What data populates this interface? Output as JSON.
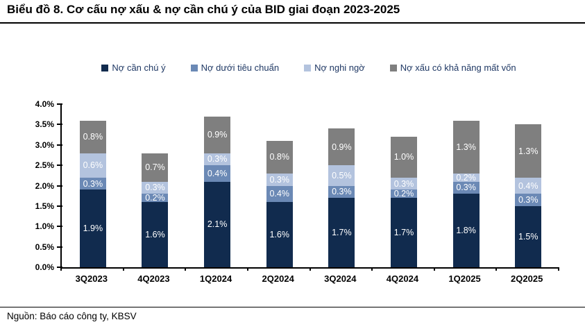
{
  "header": {
    "title": "Biểu đồ 8. Cơ cấu nợ xấu & nợ cần chú ý của BID giai đoạn 2023-2025"
  },
  "footer": {
    "source": "Nguồn: Báo cáo công ty, KBSV"
  },
  "colors": {
    "bar_label": "#ffffff",
    "axis": "#000000",
    "legend_text": "#1f3864"
  },
  "chart_data": {
    "type": "bar",
    "stacked": true,
    "title": "Biểu đồ 8. Cơ cấu nợ xấu & nợ cần chú ý của BID giai đoạn 2023-2025",
    "categories": [
      "3Q2023",
      "4Q2023",
      "1Q2024",
      "2Q2024",
      "3Q2024",
      "4Q2024",
      "1Q2025",
      "2Q2025"
    ],
    "series": [
      {
        "name": "Nợ cần chú ý",
        "color": "#112b4e",
        "values": [
          1.9,
          1.6,
          2.1,
          1.6,
          1.7,
          1.7,
          1.8,
          1.5
        ]
      },
      {
        "name": "Nợ dưới tiêu chuẩn",
        "color": "#6b89b5",
        "values": [
          0.3,
          0.2,
          0.4,
          0.4,
          0.3,
          0.2,
          0.3,
          0.3
        ]
      },
      {
        "name": "Nợ nghi ngờ",
        "color": "#b3c3de",
        "values": [
          0.6,
          0.3,
          0.3,
          0.3,
          0.5,
          0.3,
          0.2,
          0.4
        ]
      },
      {
        "name": "Nợ xấu có khả năng mất vốn",
        "color": "#7f7f7f",
        "values": [
          0.8,
          0.7,
          0.9,
          0.8,
          0.9,
          1.0,
          1.3,
          1.3
        ]
      }
    ],
    "value_suffix": "%",
    "value_decimals": 1,
    "ylim": [
      0,
      4
    ],
    "yticks": [
      "0.0%",
      "0.5%",
      "1.0%",
      "1.5%",
      "2.0%",
      "2.5%",
      "3.0%",
      "3.5%",
      "4.0%"
    ],
    "grid": false,
    "legend_position": "top-center",
    "xlabel": "",
    "ylabel": ""
  }
}
